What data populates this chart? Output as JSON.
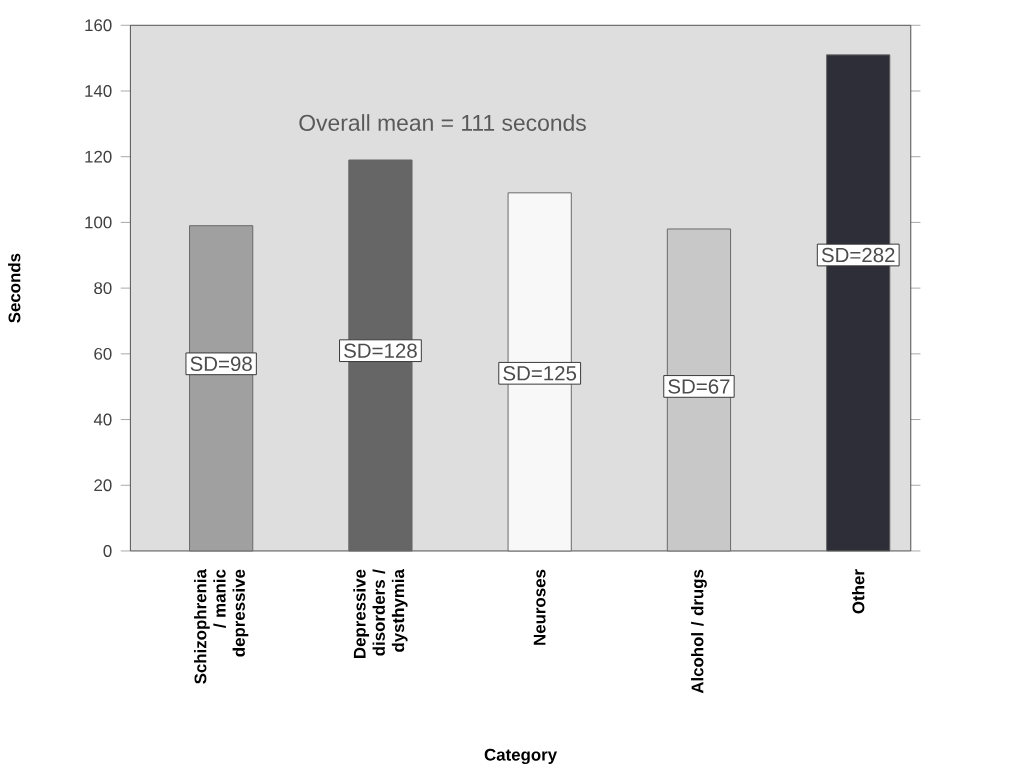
{
  "chart_data": {
    "type": "bar",
    "xlabel": "Category",
    "ylabel": "Seconds",
    "categories": [
      "Schizophrenia / manic depressive",
      "Depressive disorders / dysthymia",
      "Neuroses",
      "Alcohol / drugs",
      "Other"
    ],
    "values": [
      99,
      119,
      109,
      98,
      151
    ],
    "colors": [
      "#a0a0a0",
      "#666666",
      "#f8f8f8",
      "#c8c8c8",
      "#2e2e38"
    ],
    "ylim": [
      0,
      160
    ],
    "yticks": [
      0,
      20,
      40,
      60,
      80,
      100,
      120,
      140,
      160
    ],
    "annotations": [
      "Overall mean = 111 seconds",
      "SD=98",
      "SD=128",
      "SD=125",
      "SD=67",
      "SD=282"
    ]
  }
}
